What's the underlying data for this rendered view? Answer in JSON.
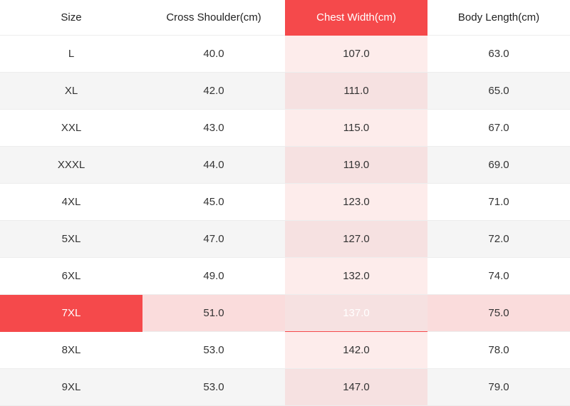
{
  "chart_data": {
    "type": "table",
    "columns": [
      "Size",
      "Cross Shoulder(cm)",
      "Chest Width(cm)",
      "Body Length(cm)"
    ],
    "column_keys": [
      "size",
      "cross_shoulder",
      "chest_width",
      "body_length"
    ],
    "highlighted_column": "Chest Width(cm)",
    "highlighted_row": "7XL",
    "rows": [
      {
        "size": "L",
        "cross_shoulder": "40.0",
        "chest_width": "107.0",
        "body_length": "63.0"
      },
      {
        "size": "XL",
        "cross_shoulder": "42.0",
        "chest_width": "111.0",
        "body_length": "65.0"
      },
      {
        "size": "XXL",
        "cross_shoulder": "43.0",
        "chest_width": "115.0",
        "body_length": "67.0"
      },
      {
        "size": "XXXL",
        "cross_shoulder": "44.0",
        "chest_width": "119.0",
        "body_length": "69.0"
      },
      {
        "size": "4XL",
        "cross_shoulder": "45.0",
        "chest_width": "123.0",
        "body_length": "71.0"
      },
      {
        "size": "5XL",
        "cross_shoulder": "47.0",
        "chest_width": "127.0",
        "body_length": "72.0"
      },
      {
        "size": "6XL",
        "cross_shoulder": "49.0",
        "chest_width": "132.0",
        "body_length": "74.0"
      },
      {
        "size": "7XL",
        "cross_shoulder": "51.0",
        "chest_width": "137.0",
        "body_length": "75.0"
      },
      {
        "size": "8XL",
        "cross_shoulder": "53.0",
        "chest_width": "142.0",
        "body_length": "78.0"
      },
      {
        "size": "9XL",
        "cross_shoulder": "53.0",
        "chest_width": "147.0",
        "body_length": "79.0"
      }
    ]
  },
  "colors": {
    "accent_red": "#f5494b",
    "chest_tint": "#fdeceb",
    "chest_tint_alt": "#f6e1e1",
    "row_alt": "#f5f5f5",
    "row_highlight_tint": "#fadcdc",
    "header_text": "#222222",
    "cell_text": "#333333"
  }
}
